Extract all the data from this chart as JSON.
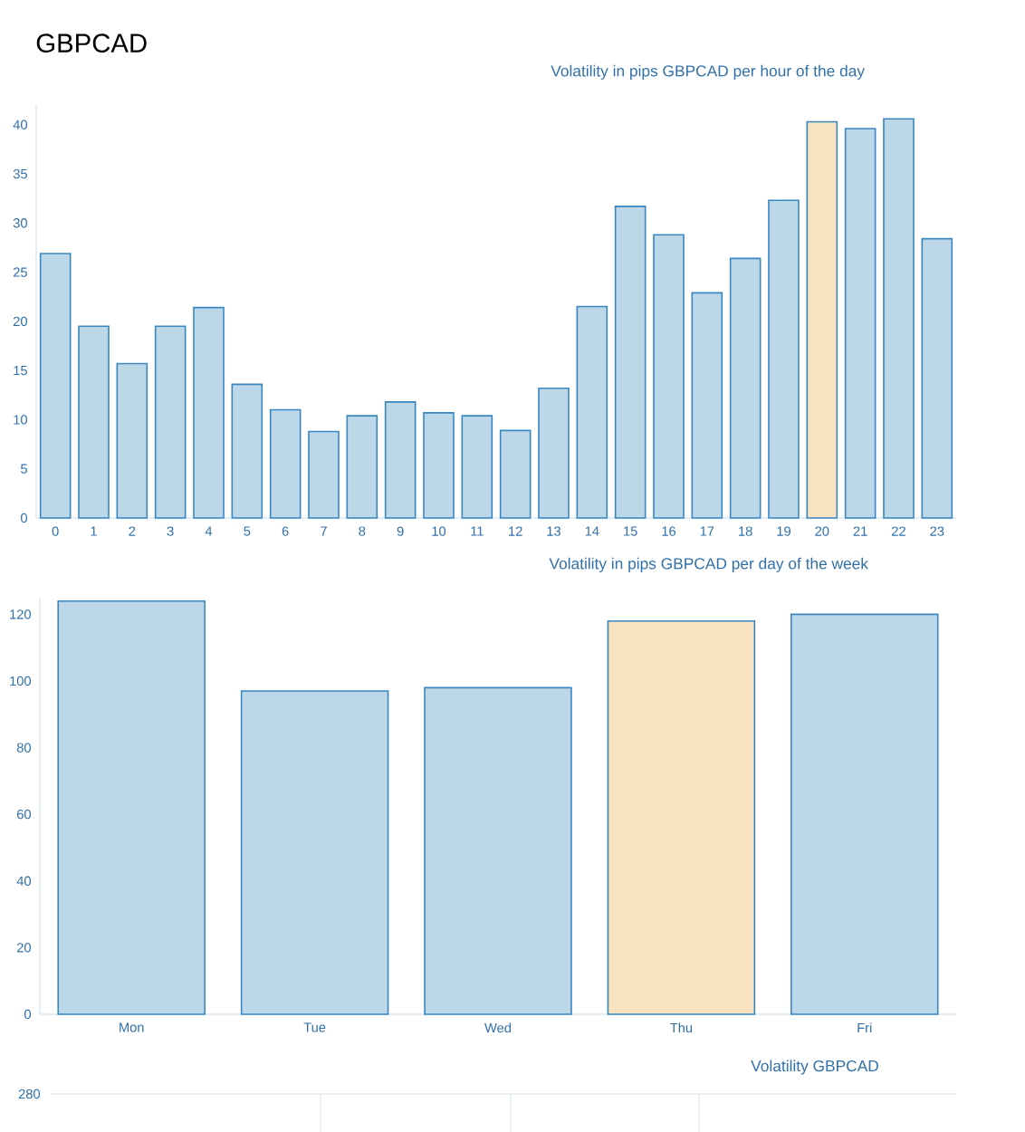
{
  "chart_data": [
    {
      "type": "bar",
      "title": "Volatility in pips GBPCAD per hour of the day",
      "annotations": [
        "GBPCAD"
      ],
      "categories": [
        "0",
        "1",
        "2",
        "3",
        "4",
        "5",
        "6",
        "7",
        "8",
        "9",
        "10",
        "11",
        "12",
        "13",
        "14",
        "15",
        "16",
        "17",
        "18",
        "19",
        "20",
        "21",
        "22",
        "23"
      ],
      "values": [
        26.9,
        19.5,
        15.7,
        19.5,
        21.4,
        13.6,
        11.0,
        8.8,
        10.4,
        11.8,
        10.7,
        10.4,
        8.9,
        13.2,
        21.5,
        31.7,
        28.8,
        22.9,
        26.4,
        32.3,
        40.3,
        39.6,
        40.6,
        28.4
      ],
      "colors": [
        "#bcd7e8",
        "#bcd7e8",
        "#bcd7e8",
        "#bcd7e8",
        "#bcd7e8",
        "#bcd7e8",
        "#bcd7e8",
        "#bcd7e8",
        "#bcd7e8",
        "#bcd7e8",
        "#bcd7e8",
        "#bcd7e8",
        "#bcd7e8",
        "#bcd7e8",
        "#bcd7e8",
        "#bcd7e8",
        "#bcd7e8",
        "#bcd7e8",
        "#bcd7e8",
        "#bcd7e8",
        "#f8e2bf",
        "#bcd7e8",
        "#bcd7e8",
        "#bcd7e8"
      ],
      "ylim": [
        0,
        42
      ],
      "yticks": [
        0,
        5,
        10,
        15,
        20,
        25,
        30,
        35,
        40
      ]
    },
    {
      "type": "bar",
      "title": "Volatility in pips GBPCAD per day of the week",
      "categories": [
        "Mon",
        "Tue",
        "Wed",
        "Thu",
        "Fri"
      ],
      "values": [
        124,
        97,
        98,
        118,
        120
      ],
      "colors": [
        "#bcd7e8",
        "#bcd7e8",
        "#bcd7e8",
        "#f8e2bf",
        "#bcd7e8"
      ],
      "ylim": [
        0,
        125
      ],
      "yticks": [
        0,
        20,
        40,
        60,
        80,
        100,
        120
      ]
    },
    {
      "type": "other",
      "title": "Volatility GBPCAD",
      "annotations": [
        "280"
      ]
    }
  ]
}
